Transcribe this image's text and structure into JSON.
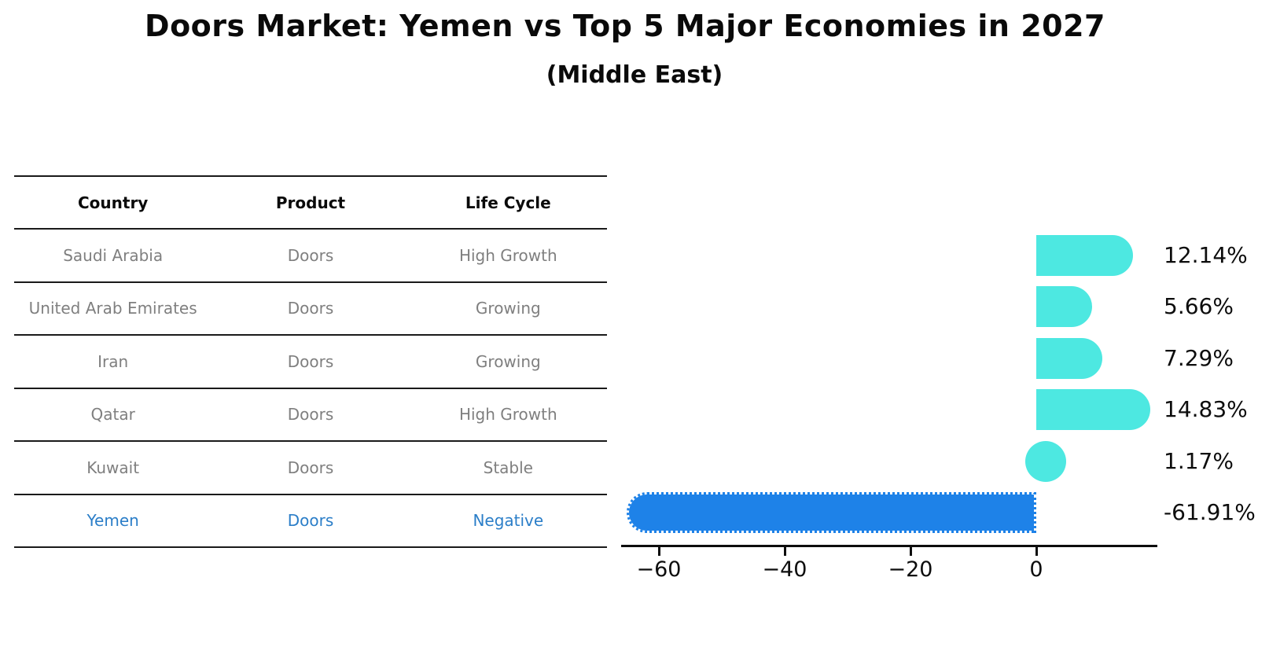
{
  "title": "Doors Market: Yemen vs Top 5 Major Economies in 2027",
  "subtitle": "(Middle East)",
  "table": {
    "headers": [
      "Country",
      "Product",
      "Life Cycle"
    ],
    "rows": [
      {
        "country": "Saudi Arabia",
        "product": "Doors",
        "life_cycle": "High Growth",
        "highlight": false
      },
      {
        "country": "United Arab Emirates",
        "product": "Doors",
        "life_cycle": "Growing",
        "highlight": false
      },
      {
        "country": "Iran",
        "product": "Doors",
        "life_cycle": "Growing",
        "highlight": false
      },
      {
        "country": "Qatar",
        "product": "Doors",
        "life_cycle": "High Growth",
        "highlight": false
      },
      {
        "country": "Kuwait",
        "product": "Doors",
        "life_cycle": "Stable",
        "highlight": false
      },
      {
        "country": "Yemen",
        "product": "Doors",
        "life_cycle": "Negative",
        "highlight": true
      }
    ]
  },
  "chart_data": {
    "type": "bar",
    "orientation": "horizontal",
    "title": "Doors Market: Yemen vs Top 5 Major Economies in 2027",
    "subtitle": "(Middle East)",
    "categories": [
      "Saudi Arabia",
      "United Arab Emirates",
      "Iran",
      "Qatar",
      "Kuwait",
      "Yemen"
    ],
    "values": [
      12.14,
      5.66,
      7.29,
      14.83,
      1.17,
      -61.91
    ],
    "value_labels": [
      "12.14%",
      "5.66%",
      "7.29%",
      "14.83%",
      "1.17%",
      "-61.91%"
    ],
    "xlabel": "",
    "ylabel": "",
    "xlim": [
      -66,
      19
    ],
    "x_ticks": [
      -60,
      -40,
      -20,
      0
    ],
    "x_tick_labels": [
      "−60",
      "−40",
      "−20",
      "0"
    ],
    "grid": false,
    "legend": "none",
    "colors": {
      "positive_bar": "#4de8e1",
      "negative_bar": "#1e82e8",
      "highlight_text": "#2b7ec8",
      "table_text": "#7f7f7f",
      "header_text": "#0a0a0a",
      "axis": "#0d0d0d"
    },
    "annotations": [
      "Yemen bar drawn with dotted outline; positive bars have rounded outer caps"
    ]
  }
}
